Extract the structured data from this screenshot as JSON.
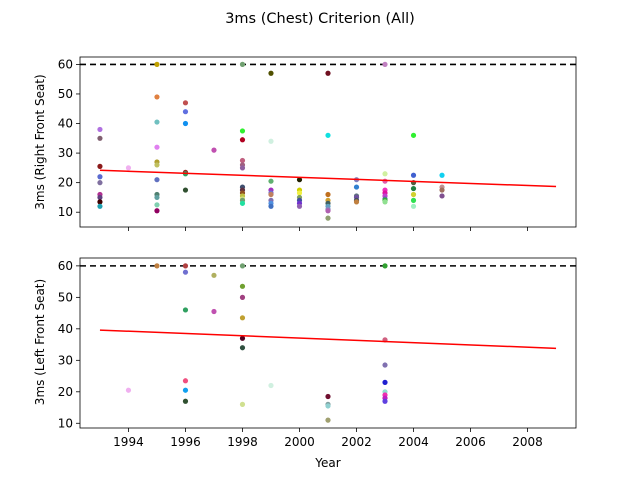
{
  "chart_data": [
    {
      "type": "scatter",
      "title": "3ms (Chest) Criterion (All)",
      "xlabel": "",
      "ylabel": "3ms (Right Front Seat)",
      "xlim": [
        1992.3,
        2009.7
      ],
      "ylim": [
        5,
        62.5
      ],
      "xticks": [
        1994,
        1996,
        1998,
        2000,
        2002,
        2004,
        2006,
        2008
      ],
      "xtick_labels_visible": false,
      "yticks": [
        10,
        20,
        30,
        40,
        50,
        60
      ],
      "reference_line": {
        "y": 60,
        "style": "dashed",
        "color": "#000000"
      },
      "trend_line": {
        "x": [
          1993,
          2009
        ],
        "y": [
          24.2,
          18.7
        ],
        "color": "#ff0000"
      },
      "points": [
        {
          "x": 1993,
          "y": 38,
          "color": "#b070e0"
        },
        {
          "x": 1993,
          "y": 35,
          "color": "#806070"
        },
        {
          "x": 1993,
          "y": 25.5,
          "color": "#8b1a1a"
        },
        {
          "x": 1993,
          "y": 22,
          "color": "#5b6bd0"
        },
        {
          "x": 1993,
          "y": 20,
          "color": "#8070a0"
        },
        {
          "x": 1993,
          "y": 16,
          "color": "#b03090"
        },
        {
          "x": 1993,
          "y": 15,
          "color": "#604080"
        },
        {
          "x": 1993,
          "y": 13.5,
          "color": "#400000"
        },
        {
          "x": 1993,
          "y": 12,
          "color": "#20a0b0"
        },
        {
          "x": 1994,
          "y": 25,
          "color": "#f0b0f0"
        },
        {
          "x": 1995,
          "y": 60,
          "color": "#c0a000"
        },
        {
          "x": 1995,
          "y": 49,
          "color": "#e08040"
        },
        {
          "x": 1995,
          "y": 40.5,
          "color": "#70c0c0"
        },
        {
          "x": 1995,
          "y": 32,
          "color": "#e080f0"
        },
        {
          "x": 1995,
          "y": 27,
          "color": "#b0a030"
        },
        {
          "x": 1995,
          "y": 26,
          "color": "#c0c060"
        },
        {
          "x": 1995,
          "y": 21,
          "color": "#6070c0"
        },
        {
          "x": 1995,
          "y": 16,
          "color": "#508070"
        },
        {
          "x": 1995,
          "y": 15,
          "color": "#60a0a0"
        },
        {
          "x": 1995,
          "y": 12.5,
          "color": "#80d0b0"
        },
        {
          "x": 1995,
          "y": 10.5,
          "color": "#900060"
        },
        {
          "x": 1996,
          "y": 47,
          "color": "#c05050"
        },
        {
          "x": 1996,
          "y": 44,
          "color": "#6070e0"
        },
        {
          "x": 1996,
          "y": 40,
          "color": "#1090f0"
        },
        {
          "x": 1996,
          "y": 23.5,
          "color": "#a02020"
        },
        {
          "x": 1996,
          "y": 23,
          "color": "#30a060"
        },
        {
          "x": 1996,
          "y": 17.5,
          "color": "#305030"
        },
        {
          "x": 1997,
          "y": 31,
          "color": "#c050b0"
        },
        {
          "x": 1998,
          "y": 60,
          "color": "#70a070"
        },
        {
          "x": 1998,
          "y": 37.5,
          "color": "#30f030"
        },
        {
          "x": 1998,
          "y": 34.5,
          "color": "#b00020"
        },
        {
          "x": 1998,
          "y": 27.5,
          "color": "#c06080"
        },
        {
          "x": 1998,
          "y": 26,
          "color": "#a06080"
        },
        {
          "x": 1998,
          "y": 25,
          "color": "#9060a0"
        },
        {
          "x": 1998,
          "y": 18.5,
          "color": "#405070"
        },
        {
          "x": 1998,
          "y": 17.5,
          "color": "#603040"
        },
        {
          "x": 1998,
          "y": 16.5,
          "color": "#905020"
        },
        {
          "x": 1998,
          "y": 15.5,
          "color": "#c0c040"
        },
        {
          "x": 1998,
          "y": 14.5,
          "color": "#d0e080"
        },
        {
          "x": 1998,
          "y": 14,
          "color": "#70a070"
        },
        {
          "x": 1998,
          "y": 13,
          "color": "#20e0a0"
        },
        {
          "x": 1999,
          "y": 57,
          "color": "#505000"
        },
        {
          "x": 1999,
          "y": 34,
          "color": "#d0f0e0"
        },
        {
          "x": 1999,
          "y": 20.5,
          "color": "#60b070"
        },
        {
          "x": 1999,
          "y": 17.5,
          "color": "#a030c0"
        },
        {
          "x": 1999,
          "y": 16.5,
          "color": "#7070d0"
        },
        {
          "x": 1999,
          "y": 16,
          "color": "#c08060"
        },
        {
          "x": 1999,
          "y": 14,
          "color": "#8070b0"
        },
        {
          "x": 1999,
          "y": 13,
          "color": "#5090e0"
        },
        {
          "x": 1999,
          "y": 12,
          "color": "#4070c0"
        },
        {
          "x": 2000,
          "y": 21,
          "color": "#202000"
        },
        {
          "x": 2000,
          "y": 17.5,
          "color": "#d0d000"
        },
        {
          "x": 2000,
          "y": 16.5,
          "color": "#f0f040"
        },
        {
          "x": 2000,
          "y": 15,
          "color": "#80a060"
        },
        {
          "x": 2000,
          "y": 14,
          "color": "#4050a0"
        },
        {
          "x": 2000,
          "y": 13,
          "color": "#7030d0"
        },
        {
          "x": 2000,
          "y": 12,
          "color": "#9060b0"
        },
        {
          "x": 2001,
          "y": 57,
          "color": "#701020"
        },
        {
          "x": 2001,
          "y": 36,
          "color": "#10e0e0"
        },
        {
          "x": 2001,
          "y": 16,
          "color": "#c07020"
        },
        {
          "x": 2001,
          "y": 14,
          "color": "#d0a030"
        },
        {
          "x": 2001,
          "y": 13,
          "color": "#406060"
        },
        {
          "x": 2001,
          "y": 12,
          "color": "#60a0c0"
        },
        {
          "x": 2001,
          "y": 11,
          "color": "#8090c0"
        },
        {
          "x": 2001,
          "y": 10.5,
          "color": "#b060b0"
        },
        {
          "x": 2001,
          "y": 8,
          "color": "#90a070"
        },
        {
          "x": 2002,
          "y": 21,
          "color": "#8080c0"
        },
        {
          "x": 2002,
          "y": 18.5,
          "color": "#3080d0"
        },
        {
          "x": 2002,
          "y": 15.5,
          "color": "#607080"
        },
        {
          "x": 2002,
          "y": 15,
          "color": "#7050a0"
        },
        {
          "x": 2002,
          "y": 14,
          "color": "#405060"
        },
        {
          "x": 2002,
          "y": 13.5,
          "color": "#c08040"
        },
        {
          "x": 2003,
          "y": 60,
          "color": "#c080c0"
        },
        {
          "x": 2003,
          "y": 23,
          "color": "#d0f0a0"
        },
        {
          "x": 2003,
          "y": 20.5,
          "color": "#e060b0"
        },
        {
          "x": 2003,
          "y": 17.5,
          "color": "#f030c0"
        },
        {
          "x": 2003,
          "y": 16.5,
          "color": "#e010a0"
        },
        {
          "x": 2003,
          "y": 15.5,
          "color": "#c040d0"
        },
        {
          "x": 2003,
          "y": 14.5,
          "color": "#6070a0"
        },
        {
          "x": 2003,
          "y": 14,
          "color": "#30b030"
        },
        {
          "x": 2003,
          "y": 13.5,
          "color": "#90e090"
        },
        {
          "x": 2004,
          "y": 36,
          "color": "#30f030"
        },
        {
          "x": 2004,
          "y": 22.5,
          "color": "#4060d0"
        },
        {
          "x": 2004,
          "y": 20,
          "color": "#506040"
        },
        {
          "x": 2004,
          "y": 18,
          "color": "#208040"
        },
        {
          "x": 2004,
          "y": 16,
          "color": "#d0d030"
        },
        {
          "x": 2004,
          "y": 14,
          "color": "#30e050"
        },
        {
          "x": 2004,
          "y": 12,
          "color": "#a0f0c0"
        },
        {
          "x": 2005,
          "y": 22.5,
          "color": "#10d0f0"
        },
        {
          "x": 2005,
          "y": 18.5,
          "color": "#c09090"
        },
        {
          "x": 2005,
          "y": 17.5,
          "color": "#a07060"
        },
        {
          "x": 2005,
          "y": 15.5,
          "color": "#805090"
        }
      ]
    },
    {
      "type": "scatter",
      "title": "",
      "xlabel": "Year",
      "ylabel": "3ms (Left Front Seat)",
      "xlim": [
        1992.3,
        2009.7
      ],
      "ylim": [
        8.5,
        62.5
      ],
      "xticks": [
        1994,
        1996,
        1998,
        2000,
        2002,
        2004,
        2006,
        2008
      ],
      "xtick_labels_visible": true,
      "yticks": [
        10,
        20,
        30,
        40,
        50,
        60
      ],
      "reference_line": {
        "y": 60,
        "style": "dashed",
        "color": "#000000"
      },
      "trend_line": {
        "x": [
          1993,
          2009
        ],
        "y": [
          39.6,
          33.8
        ],
        "color": "#ff0000"
      },
      "points": [
        {
          "x": 1994,
          "y": 20.5,
          "color": "#f0b0f0"
        },
        {
          "x": 1995,
          "y": 60,
          "color": "#c08040"
        },
        {
          "x": 1996,
          "y": 60,
          "color": "#b04040"
        },
        {
          "x": 1996,
          "y": 58,
          "color": "#7070d0"
        },
        {
          "x": 1996,
          "y": 46,
          "color": "#30a060"
        },
        {
          "x": 1996,
          "y": 23.5,
          "color": "#f05080"
        },
        {
          "x": 1996,
          "y": 20.5,
          "color": "#10a0f0"
        },
        {
          "x": 1996,
          "y": 17,
          "color": "#305030"
        },
        {
          "x": 1997,
          "y": 57,
          "color": "#b0b060"
        },
        {
          "x": 1997,
          "y": 45.5,
          "color": "#c050b0"
        },
        {
          "x": 1998,
          "y": 60,
          "color": "#70a070"
        },
        {
          "x": 1998,
          "y": 53.5,
          "color": "#70a030"
        },
        {
          "x": 1998,
          "y": 50,
          "color": "#a04080"
        },
        {
          "x": 1998,
          "y": 43.5,
          "color": "#c0a030"
        },
        {
          "x": 1998,
          "y": 37,
          "color": "#500020"
        },
        {
          "x": 1998,
          "y": 34,
          "color": "#305040"
        },
        {
          "x": 1998,
          "y": 16,
          "color": "#d0e090"
        },
        {
          "x": 1999,
          "y": 22,
          "color": "#d0f0e0"
        },
        {
          "x": 2001,
          "y": 18.5,
          "color": "#701030"
        },
        {
          "x": 2001,
          "y": 16,
          "color": "#80a0a0"
        },
        {
          "x": 2001,
          "y": 15.5,
          "color": "#90d0d0"
        },
        {
          "x": 2001,
          "y": 11,
          "color": "#a0a070"
        },
        {
          "x": 2003,
          "y": 60,
          "color": "#30a030"
        },
        {
          "x": 2003,
          "y": 36.5,
          "color": "#d06080"
        },
        {
          "x": 2003,
          "y": 28.5,
          "color": "#8070b0"
        },
        {
          "x": 2003,
          "y": 23,
          "color": "#2020d0"
        },
        {
          "x": 2003,
          "y": 20,
          "color": "#90e0d0"
        },
        {
          "x": 2003,
          "y": 19,
          "color": "#f030b0"
        },
        {
          "x": 2003,
          "y": 18,
          "color": "#c020c0"
        },
        {
          "x": 2003,
          "y": 17,
          "color": "#6040e0"
        }
      ]
    }
  ]
}
